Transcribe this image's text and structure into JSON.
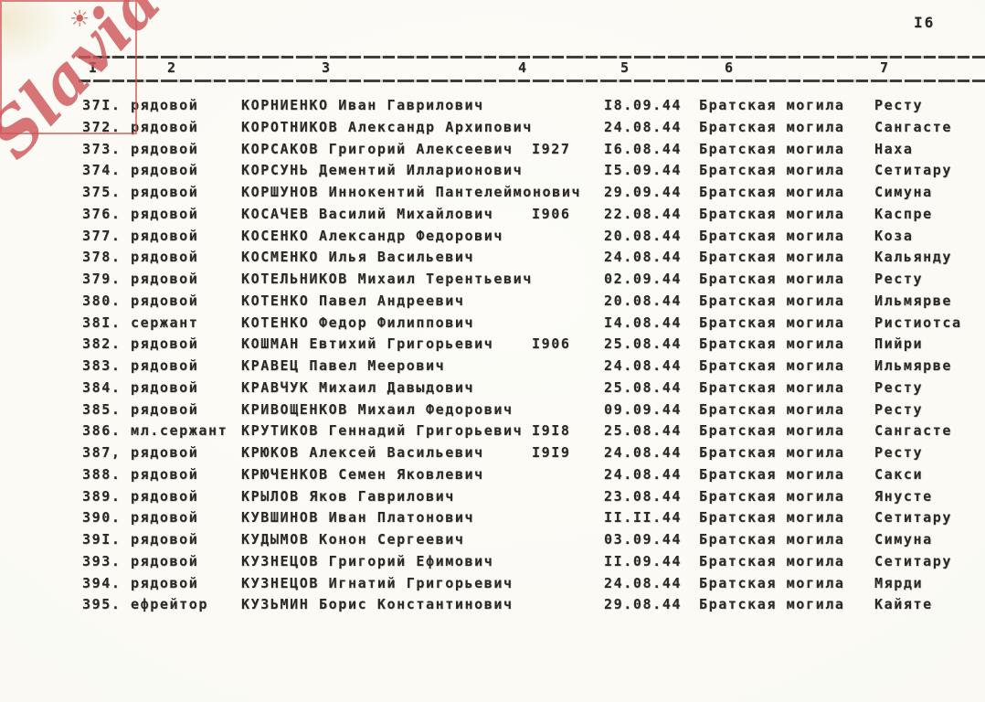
{
  "page": {
    "number": "I6"
  },
  "watermark": {
    "text": "Slavia",
    "color": "#cd575a"
  },
  "icons": {
    "sun": "☀"
  },
  "table": {
    "column_headers": [
      "I",
      "2",
      "3",
      "4",
      "5",
      "6",
      "7"
    ],
    "rows": [
      {
        "num": "37I.",
        "rank": "рядовой",
        "name": "КОРНИЕНКО Иван Гаврилович",
        "year": "",
        "date": "I8.09.44",
        "grave": "Братская могила",
        "place": "Ресту"
      },
      {
        "num": "372.",
        "rank": "рядовой",
        "name": "КОРОТНИКОВ Александр Архипович",
        "year": "",
        "date": "24.08.44",
        "grave": "Братская могила",
        "place": "Сангасте"
      },
      {
        "num": "373.",
        "rank": "рядовой",
        "name": "КОРСАКОВ Григорий Алексеевич",
        "year": "I927",
        "date": "I6.08.44",
        "grave": "Братская могила",
        "place": "Наха"
      },
      {
        "num": "374.",
        "rank": "рядовой",
        "name": "КОРСУНЬ Дементий Илларионович",
        "year": "",
        "date": "I5.09.44",
        "grave": "Братская могила",
        "place": "Сетитару"
      },
      {
        "num": "375.",
        "rank": "рядовой",
        "name": "КОРШУНОВ Иннокентий Пантелеймонович",
        "year": "",
        "date": "29.09.44",
        "grave": "Братская могила",
        "place": "Симуна"
      },
      {
        "num": "376.",
        "rank": "рядовой",
        "name": "КОСАЧЕВ Василий Михайлович",
        "year": "I906",
        "date": "22.08.44",
        "grave": "Братская могила",
        "place": "Каспре"
      },
      {
        "num": "377.",
        "rank": "рядовой",
        "name": "КОСЕНКО Александр Федорович",
        "year": "",
        "date": "20.08.44",
        "grave": "Братская могила",
        "place": "Коза"
      },
      {
        "num": "378.",
        "rank": "рядовой",
        "name": "КОСМЕНКО Илья Васильевич",
        "year": "",
        "date": "24.08.44",
        "grave": "Братская могила",
        "place": "Кальянду"
      },
      {
        "num": "379.",
        "rank": "рядовой",
        "name": "КОТЕЛЬНИКОВ Михаил Терентьевич",
        "year": "",
        "date": "02.09.44",
        "grave": "Братская могила",
        "place": "Ресту"
      },
      {
        "num": "380.",
        "rank": "рядовой",
        "name": "КОТЕНКО Павел Андреевич",
        "year": "",
        "date": "20.08.44",
        "grave": "Братская могила",
        "place": "Ильмярве"
      },
      {
        "num": "38I.",
        "rank": "сержант",
        "name": "КОТЕНКО Федор Филиппович",
        "year": "",
        "date": "I4.08.44",
        "grave": "Братская могила",
        "place": "Ристиотса"
      },
      {
        "num": "382.",
        "rank": "рядовой",
        "name": "КОШМАН Евтихий Григорьевич",
        "year": "I906",
        "date": "25.08.44",
        "grave": "Братская могила",
        "place": "Пийри"
      },
      {
        "num": "383.",
        "rank": "рядовой",
        "name": "КРАВЕЦ Павел Меерович",
        "year": "",
        "date": "24.08.44",
        "grave": "Братская могила",
        "place": "Ильмярве"
      },
      {
        "num": "384.",
        "rank": "рядовой",
        "name": "КРАВЧУК Михаил Давыдович",
        "year": "",
        "date": "25.08.44",
        "grave": "Братская могила",
        "place": "Ресту"
      },
      {
        "num": "385.",
        "rank": "рядовой",
        "name": "КРИВОЩЕНКОВ Михаил Федорович",
        "year": "",
        "date": "09.09.44",
        "grave": "Братская могила",
        "place": "Ресту"
      },
      {
        "num": "386.",
        "rank": "мл.сержант",
        "name": "КРУТИКОВ Геннадий Григорьевич",
        "year": "I9I8",
        "date": "25.08.44",
        "grave": "Братская могила",
        "place": "Сангасте"
      },
      {
        "num": "387,",
        "rank": "рядовой",
        "name": "КРЮКОВ Алексей Васильевич",
        "year": "I9I9",
        "date": "24.08.44",
        "grave": "Братская могила",
        "place": "Ресту"
      },
      {
        "num": "388.",
        "rank": "рядовой",
        "name": "КРЮЧЕНКОВ Семен Яковлевич",
        "year": "",
        "date": "24.08.44",
        "grave": "Братская могила",
        "place": "Сакси"
      },
      {
        "num": "389.",
        "rank": "рядовой",
        "name": "КРЫЛОВ Яков Гаврилович",
        "year": "",
        "date": "23.08.44",
        "grave": "Братская могила",
        "place": "Янусте"
      },
      {
        "num": "390.",
        "rank": "рядовой",
        "name": "КУВШИНОВ Иван Платонович",
        "year": "",
        "date": "II.II.44",
        "grave": "Братская могила",
        "place": "Сетитару"
      },
      {
        "num": "39I.",
        "rank": "рядовой",
        "name": "КУДЫМОВ Конон Сергеевич",
        "year": "",
        "date": "03.09.44",
        "grave": "Братская могила",
        "place": "Симуна"
      },
      {
        "num": "393.",
        "rank": "рядовой",
        "name": "КУЗНЕЦОВ Григорий Ефимович",
        "year": "",
        "date": "II.09.44",
        "grave": "Братская могила",
        "place": "Сетитару"
      },
      {
        "num": "394.",
        "rank": "рядовой",
        "name": "КУЗНЕЦОВ Игнатий Григорьевич",
        "year": "",
        "date": "24.08.44",
        "grave": "Братская могила",
        "place": "Мярди"
      },
      {
        "num": "395.",
        "rank": "ефрейтор",
        "name": "КУЗЬМИН Борис Константинович",
        "year": "",
        "date": "29.08.44",
        "grave": "Братская могила",
        "place": "Кайяте"
      }
    ]
  }
}
